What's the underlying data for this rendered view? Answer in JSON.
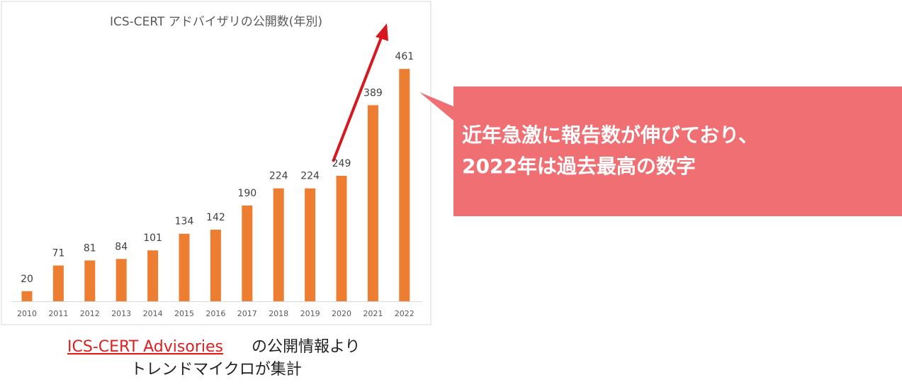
{
  "chart_data": {
    "type": "bar",
    "title": "ICS-CERT アドバイザリの公開数(年別)",
    "categories": [
      "2010",
      "2011",
      "2012",
      "2013",
      "2014",
      "2015",
      "2016",
      "2017",
      "2018",
      "2019",
      "2020",
      "2021",
      "2022"
    ],
    "values": [
      20,
      71,
      81,
      84,
      101,
      134,
      142,
      190,
      224,
      224,
      249,
      389,
      461
    ],
    "color": "#ed7d31",
    "callout": {
      "lines": [
        "近年急激に報告数が伸びており、",
        "2022年は過去最高の数字"
      ],
      "color": "#ef6f73"
    },
    "arrow_color": "#d7191f",
    "caption": {
      "link": "ICS-CERT Advisories",
      "after_link": "の公開情報より",
      "line2": "トレンドマイクロが集計"
    }
  }
}
